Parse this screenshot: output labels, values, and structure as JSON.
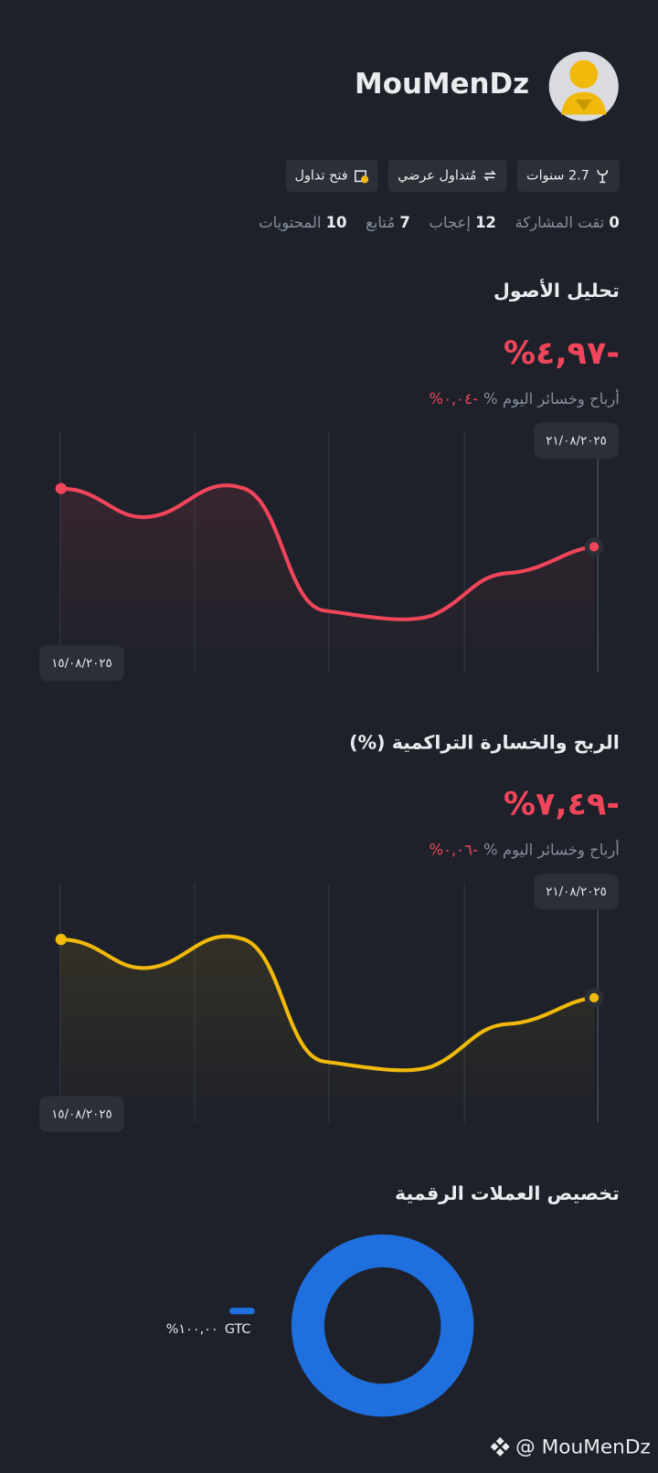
{
  "profile": {
    "username": "MouMenDz",
    "badges": [
      "2.7 سنوات",
      "مُتداول عرضي",
      "فتح تداول"
    ],
    "stats": [
      {
        "value": "0",
        "label": "تقت المشاركة"
      },
      {
        "value": "12",
        "label": "إعجاب"
      },
      {
        "value": "7",
        "label": "مُتابع"
      },
      {
        "value": "10",
        "label": "المحتويات"
      }
    ]
  },
  "asset_analysis": {
    "title": "تحليل الأصول",
    "value": "%٤,٩٧-",
    "daily_label": "أرباح وخسائر اليوم %",
    "daily_value": "%٠,٠٤-",
    "start_date": "١٥/٠٨/٢٠٢٥",
    "end_date": "٢١/٠٨/٢٠٢٥"
  },
  "cumulative_pnl": {
    "title": "الربح والخسارة التراكمية (%)",
    "value": "%٧,٤٩-",
    "daily_label": "أرباح وخسائر اليوم %",
    "daily_value": "%٠,٠٦-",
    "start_date": "١٥/٠٨/٢٠٢٥",
    "end_date": "٢١/٠٨/٢٠٢٥"
  },
  "allocation": {
    "title": "تخصيص العملات الرقمية",
    "items": [
      {
        "name": "GTC",
        "value": 100,
        "label": "%١٠٠,٠٠",
        "color": "#1f6fde"
      }
    ]
  },
  "footer": "@ MouMenDz"
}
